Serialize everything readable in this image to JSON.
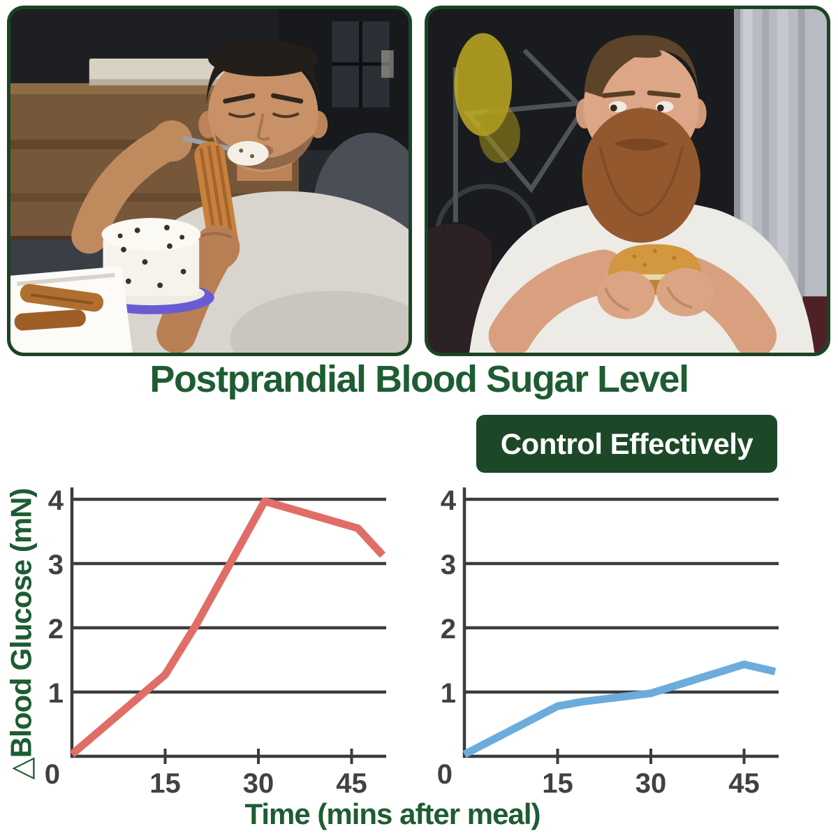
{
  "title": "Postprandial Blood Sugar Level",
  "badge": {
    "label": "Control Effectively"
  },
  "photos": {
    "left": {
      "alt": "Man slouched on a sofa frowning while eating churros and a cream-topped, chocolate-sprinkled dessert from a spoon, with a white box of churros beside him"
    },
    "right": {
      "alt": "Bearded man in a white t-shirt sitting on a couch holding a burger with both hands, blurry bicycle and curtain in the background"
    }
  },
  "colors": {
    "green_text": "#1e5c32",
    "badge_bg": "#1d4827",
    "frame_border": "#1b4423",
    "axis": "#3c3c3c",
    "tick_text": "#414141",
    "line_red": "#e06d66",
    "line_blue": "#6cacdd"
  },
  "chart_data": {
    "type": "line",
    "title": "Postprandial Blood Sugar Level",
    "ylabel": "△Blood Glucose (mN)",
    "xlabel": "Time (mins after meal)",
    "xlim": [
      0,
      50
    ],
    "ylim": [
      0,
      4.35
    ],
    "yticks": [
      0,
      1,
      2,
      3,
      4
    ],
    "xticks": [
      15,
      30,
      45
    ],
    "grid": "horizontal gridlines at y = 1,2,3,4",
    "legend": "none",
    "panels": [
      {
        "name": "uncontrolled",
        "label": "Blood glucose spike without control (left chart, red line)",
        "color": "#e06d66",
        "points": [
          [
            0,
            0.03
          ],
          [
            15,
            1.27
          ],
          [
            20,
            2.05
          ],
          [
            31,
            3.97
          ],
          [
            46,
            3.55
          ],
          [
            50,
            3.13
          ]
        ]
      },
      {
        "name": "controlled",
        "label": "Blood glucose controlled effectively (right chart, blue line)",
        "color": "#6cacdd",
        "points": [
          [
            0,
            0.03
          ],
          [
            15,
            0.78
          ],
          [
            19,
            0.85
          ],
          [
            30,
            0.98
          ],
          [
            45,
            1.43
          ],
          [
            50,
            1.32
          ]
        ]
      }
    ]
  }
}
